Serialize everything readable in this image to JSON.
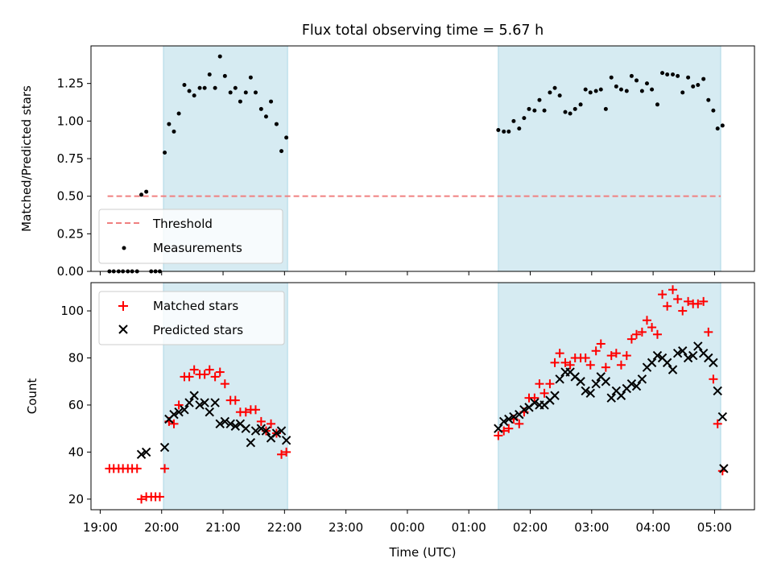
{
  "figure": {
    "title": "Flux total observing time = 5.67 h",
    "xlabel": "Time (UTC)"
  },
  "chart_data": [
    {
      "type": "scatter",
      "panel": "top",
      "ylabel": "Matched/Predicted stars",
      "x_unit": "hours since 19:00 UTC",
      "xlim": [
        18.85,
        29.65
      ],
      "ylim": [
        0,
        1.5
      ],
      "yticks": [
        0.0,
        0.25,
        0.5,
        0.75,
        1.0,
        1.25
      ],
      "ytick_labels": [
        "0.00",
        "0.25",
        "0.50",
        "0.75",
        "1.00",
        "1.25"
      ],
      "grid": false,
      "legend_position": "lower-left",
      "shaded_spans": [
        [
          20.03,
          22.05
        ],
        [
          25.48,
          29.1
        ]
      ],
      "threshold": {
        "name": "Threshold",
        "value": 0.5,
        "x_range": [
          19.12,
          29.1
        ],
        "color": "#f08080"
      },
      "series": [
        {
          "name": "Measurements",
          "color": "#000000",
          "points": [
            [
              19.15,
              0
            ],
            [
              19.22,
              0
            ],
            [
              19.3,
              0
            ],
            [
              19.37,
              0
            ],
            [
              19.45,
              0
            ],
            [
              19.52,
              0
            ],
            [
              19.6,
              0
            ],
            [
              19.67,
              0.51
            ],
            [
              19.75,
              0.53
            ],
            [
              19.83,
              0
            ],
            [
              19.9,
              0
            ],
            [
              19.97,
              0
            ],
            [
              20.05,
              0.79
            ],
            [
              20.12,
              0.98
            ],
            [
              20.2,
              0.93
            ],
            [
              20.28,
              1.05
            ],
            [
              20.37,
              1.24
            ],
            [
              20.45,
              1.2
            ],
            [
              20.53,
              1.17
            ],
            [
              20.62,
              1.22
            ],
            [
              20.7,
              1.22
            ],
            [
              20.78,
              1.31
            ],
            [
              20.87,
              1.22
            ],
            [
              20.95,
              1.43
            ],
            [
              21.03,
              1.3
            ],
            [
              21.12,
              1.19
            ],
            [
              21.2,
              1.22
            ],
            [
              21.28,
              1.13
            ],
            [
              21.37,
              1.19
            ],
            [
              21.45,
              1.29
            ],
            [
              21.53,
              1.19
            ],
            [
              21.62,
              1.08
            ],
            [
              21.7,
              1.03
            ],
            [
              21.78,
              1.13
            ],
            [
              21.87,
              0.98
            ],
            [
              21.95,
              0.8
            ],
            [
              22.03,
              0.89
            ],
            [
              25.48,
              0.94
            ],
            [
              25.57,
              0.93
            ],
            [
              25.65,
              0.93
            ],
            [
              25.73,
              1.0
            ],
            [
              25.82,
              0.95
            ],
            [
              25.9,
              1.02
            ],
            [
              25.98,
              1.08
            ],
            [
              26.07,
              1.07
            ],
            [
              26.15,
              1.14
            ],
            [
              26.23,
              1.07
            ],
            [
              26.32,
              1.19
            ],
            [
              26.4,
              1.22
            ],
            [
              26.48,
              1.17
            ],
            [
              26.57,
              1.06
            ],
            [
              26.65,
              1.05
            ],
            [
              26.73,
              1.08
            ],
            [
              26.82,
              1.11
            ],
            [
              26.9,
              1.21
            ],
            [
              26.98,
              1.19
            ],
            [
              27.07,
              1.2
            ],
            [
              27.15,
              1.21
            ],
            [
              27.23,
              1.08
            ],
            [
              27.32,
              1.29
            ],
            [
              27.4,
              1.23
            ],
            [
              27.48,
              1.21
            ],
            [
              27.57,
              1.2
            ],
            [
              27.65,
              1.3
            ],
            [
              27.73,
              1.27
            ],
            [
              27.82,
              1.2
            ],
            [
              27.9,
              1.25
            ],
            [
              27.98,
              1.21
            ],
            [
              28.07,
              1.11
            ],
            [
              28.15,
              1.32
            ],
            [
              28.23,
              1.31
            ],
            [
              28.32,
              1.31
            ],
            [
              28.4,
              1.3
            ],
            [
              28.48,
              1.19
            ],
            [
              28.57,
              1.29
            ],
            [
              28.65,
              1.23
            ],
            [
              28.73,
              1.24
            ],
            [
              28.82,
              1.28
            ],
            [
              28.9,
              1.14
            ],
            [
              28.98,
              1.07
            ],
            [
              29.05,
              0.95
            ],
            [
              29.13,
              0.97
            ]
          ]
        }
      ]
    },
    {
      "type": "scatter",
      "panel": "bottom",
      "ylabel": "Count",
      "x_unit": "hours since 19:00 UTC",
      "xlim": [
        18.85,
        29.65
      ],
      "ylim": [
        15.5,
        112
      ],
      "yticks": [
        20,
        40,
        60,
        80,
        100
      ],
      "ytick_labels": [
        "20",
        "40",
        "60",
        "80",
        "100"
      ],
      "xticks": [
        19,
        20,
        21,
        22,
        23,
        24,
        25,
        26,
        27,
        28,
        29
      ],
      "xtick_labels": [
        "19:00",
        "20:00",
        "21:00",
        "22:00",
        "23:00",
        "00:00",
        "01:00",
        "02:00",
        "03:00",
        "04:00",
        "05:00"
      ],
      "grid": false,
      "legend_position": "upper-left",
      "shaded_spans": [
        [
          20.03,
          22.05
        ],
        [
          25.48,
          29.1
        ]
      ],
      "series": [
        {
          "name": "Matched stars",
          "color": "#ff0000",
          "marker": "plus",
          "points": [
            [
              19.15,
              33
            ],
            [
              19.22,
              33
            ],
            [
              19.3,
              33
            ],
            [
              19.37,
              33
            ],
            [
              19.45,
              33
            ],
            [
              19.52,
              33
            ],
            [
              19.6,
              33
            ],
            [
              19.67,
              20
            ],
            [
              19.75,
              21
            ],
            [
              19.83,
              21
            ],
            [
              19.9,
              21
            ],
            [
              19.97,
              21
            ],
            [
              20.05,
              33
            ],
            [
              20.12,
              53
            ],
            [
              20.2,
              52
            ],
            [
              20.28,
              60
            ],
            [
              20.37,
              72
            ],
            [
              20.45,
              72
            ],
            [
              20.53,
              75
            ],
            [
              20.62,
              73
            ],
            [
              20.7,
              73
            ],
            [
              20.78,
              75
            ],
            [
              20.87,
              72
            ],
            [
              20.95,
              74
            ],
            [
              21.03,
              69
            ],
            [
              21.12,
              62
            ],
            [
              21.2,
              62
            ],
            [
              21.28,
              57
            ],
            [
              21.37,
              57
            ],
            [
              21.45,
              58
            ],
            [
              21.53,
              58
            ],
            [
              21.62,
              53
            ],
            [
              21.7,
              49
            ],
            [
              21.78,
              52
            ],
            [
              21.87,
              48
            ],
            [
              21.95,
              39
            ],
            [
              22.03,
              40
            ],
            [
              25.48,
              47
            ],
            [
              25.57,
              49
            ],
            [
              25.65,
              50
            ],
            [
              25.73,
              54
            ],
            [
              25.82,
              52
            ],
            [
              25.9,
              57
            ],
            [
              25.98,
              63
            ],
            [
              26.07,
              63
            ],
            [
              26.15,
              69
            ],
            [
              26.23,
              65
            ],
            [
              26.32,
              69
            ],
            [
              26.4,
              78
            ],
            [
              26.48,
              82
            ],
            [
              26.57,
              78
            ],
            [
              26.65,
              77
            ],
            [
              26.73,
              80
            ],
            [
              26.82,
              80
            ],
            [
              26.9,
              80
            ],
            [
              26.98,
              77
            ],
            [
              27.07,
              83
            ],
            [
              27.15,
              86
            ],
            [
              27.23,
              76
            ],
            [
              27.32,
              81
            ],
            [
              27.4,
              82
            ],
            [
              27.48,
              77
            ],
            [
              27.57,
              81
            ],
            [
              27.65,
              88
            ],
            [
              27.73,
              90
            ],
            [
              27.82,
              91
            ],
            [
              27.9,
              96
            ],
            [
              27.98,
              93
            ],
            [
              28.07,
              90
            ],
            [
              28.15,
              107
            ],
            [
              28.23,
              102
            ],
            [
              28.32,
              109
            ],
            [
              28.4,
              105
            ],
            [
              28.48,
              100
            ],
            [
              28.57,
              104
            ],
            [
              28.65,
              103
            ],
            [
              28.73,
              103
            ],
            [
              28.82,
              104
            ],
            [
              28.9,
              91
            ],
            [
              28.98,
              71
            ],
            [
              29.05,
              52
            ],
            [
              29.13,
              32
            ]
          ]
        },
        {
          "name": "Predicted stars",
          "color": "#000000",
          "marker": "x",
          "points": [
            [
              19.67,
              39
            ],
            [
              19.75,
              40
            ],
            [
              20.05,
              42
            ],
            [
              20.12,
              54
            ],
            [
              20.2,
              56
            ],
            [
              20.28,
              57
            ],
            [
              20.37,
              58
            ],
            [
              20.45,
              61
            ],
            [
              20.53,
              64
            ],
            [
              20.62,
              60
            ],
            [
              20.7,
              61
            ],
            [
              20.78,
              57
            ],
            [
              20.87,
              61
            ],
            [
              20.95,
              52
            ],
            [
              21.03,
              53
            ],
            [
              21.12,
              52
            ],
            [
              21.2,
              51
            ],
            [
              21.28,
              52
            ],
            [
              21.37,
              50
            ],
            [
              21.45,
              44
            ],
            [
              21.53,
              49
            ],
            [
              21.62,
              50
            ],
            [
              21.7,
              49
            ],
            [
              21.78,
              46
            ],
            [
              21.87,
              48
            ],
            [
              21.95,
              49
            ],
            [
              22.03,
              45
            ],
            [
              25.48,
              50
            ],
            [
              25.57,
              53
            ],
            [
              25.65,
              54
            ],
            [
              25.73,
              55
            ],
            [
              25.82,
              56
            ],
            [
              25.9,
              58
            ],
            [
              25.98,
              59
            ],
            [
              26.07,
              61
            ],
            [
              26.15,
              60
            ],
            [
              26.23,
              60
            ],
            [
              26.32,
              62
            ],
            [
              26.4,
              64
            ],
            [
              26.48,
              71
            ],
            [
              26.57,
              74
            ],
            [
              26.65,
              74
            ],
            [
              26.73,
              72
            ],
            [
              26.82,
              70
            ],
            [
              26.9,
              66
            ],
            [
              26.98,
              65
            ],
            [
              27.07,
              69
            ],
            [
              27.15,
              72
            ],
            [
              27.23,
              70
            ],
            [
              27.32,
              63
            ],
            [
              27.4,
              66
            ],
            [
              27.48,
              64
            ],
            [
              27.57,
              67
            ],
            [
              27.65,
              69
            ],
            [
              27.73,
              68
            ],
            [
              27.82,
              71
            ],
            [
              27.9,
              76
            ],
            [
              27.98,
              78
            ],
            [
              28.07,
              81
            ],
            [
              28.15,
              80
            ],
            [
              28.23,
              78
            ],
            [
              28.32,
              75
            ],
            [
              28.4,
              82
            ],
            [
              28.48,
              83
            ],
            [
              28.57,
              80
            ],
            [
              28.65,
              81
            ],
            [
              28.73,
              85
            ],
            [
              28.82,
              82
            ],
            [
              28.9,
              80
            ],
            [
              28.98,
              78
            ],
            [
              29.05,
              66
            ],
            [
              29.13,
              55
            ],
            [
              29.15,
              33
            ]
          ]
        }
      ]
    }
  ]
}
